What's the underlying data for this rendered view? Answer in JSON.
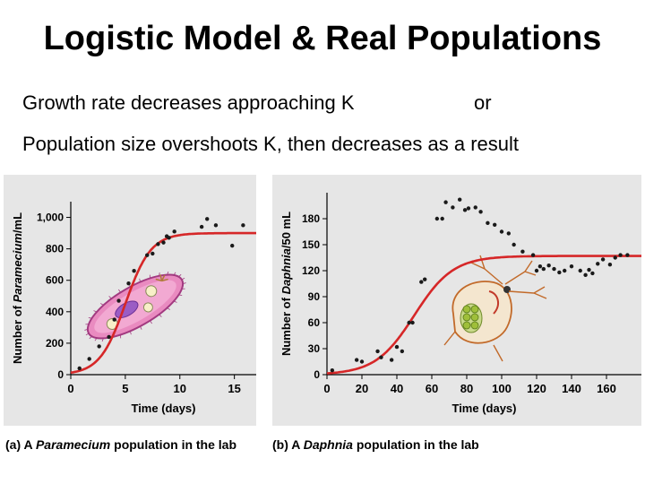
{
  "slide": {
    "title": "Logistic Model & Real Populations",
    "line1": "Growth rate decreases approaching K",
    "or": "or",
    "line2": "Population size overshoots K, then decreases as a result"
  },
  "captions": {
    "a_prefix": "(a) A",
    "a_species": "Paramecium",
    "a_suffix": "population in the lab",
    "b_prefix": "(b) A",
    "b_species": "Daphnia",
    "b_suffix": "population in the lab"
  },
  "colors": {
    "curve": "#d62728",
    "points": "#1a1a1a",
    "panel": "#e6e6e6"
  },
  "icons": {
    "a": "paramecium-illustration",
    "b": "daphnia-illustration"
  },
  "chart_data": [
    {
      "type": "scatter",
      "xlabel": "Time (days)",
      "ylabel_prefix": "Number of",
      "ylabel_species": "Paramecium",
      "ylabel_suffix": "/mL",
      "xlim": [
        0,
        17
      ],
      "ylim": [
        0,
        1100
      ],
      "xticks": [
        0,
        5,
        10,
        15
      ],
      "yticks": [
        0,
        200,
        400,
        600,
        800,
        1000
      ],
      "yticklabels": [
        "0",
        "200",
        "400",
        "600",
        "800",
        "1,000"
      ],
      "points": [
        [
          0.8,
          40
        ],
        [
          1.7,
          100
        ],
        [
          2.6,
          180
        ],
        [
          3.5,
          240
        ],
        [
          4.0,
          350
        ],
        [
          4.4,
          470
        ],
        [
          5.3,
          580
        ],
        [
          5.8,
          660
        ],
        [
          7.0,
          760
        ],
        [
          7.5,
          770
        ],
        [
          8.0,
          830
        ],
        [
          8.5,
          840
        ],
        [
          8.8,
          880
        ],
        [
          9.0,
          870
        ],
        [
          9.5,
          910
        ],
        [
          12.0,
          940
        ],
        [
          12.5,
          990
        ],
        [
          13.3,
          950
        ],
        [
          14.8,
          820
        ],
        [
          15.8,
          950
        ]
      ],
      "curve": {
        "K": 900,
        "r": 0.85,
        "t0": 5.0
      }
    },
    {
      "type": "scatter",
      "xlabel": "Time (days)",
      "ylabel_prefix": "Number of",
      "ylabel_species": "Daphnia",
      "ylabel_suffix": "/50 mL",
      "xlim": [
        0,
        180
      ],
      "ylim": [
        0,
        210
      ],
      "xticks": [
        0,
        20,
        40,
        60,
        80,
        100,
        120,
        140,
        160
      ],
      "yticks": [
        0,
        30,
        60,
        90,
        120,
        150,
        180
      ],
      "yticklabels": [
        "0",
        "30",
        "60",
        "90",
        "120",
        "150",
        "180"
      ],
      "points": [
        [
          3,
          5
        ],
        [
          17,
          17
        ],
        [
          20,
          15
        ],
        [
          29,
          27
        ],
        [
          31,
          20
        ],
        [
          37,
          17
        ],
        [
          40,
          32
        ],
        [
          43,
          27
        ],
        [
          47,
          60
        ],
        [
          49,
          60
        ],
        [
          54,
          107
        ],
        [
          56,
          110
        ],
        [
          63,
          180
        ],
        [
          66,
          180
        ],
        [
          68,
          199
        ],
        [
          72,
          193
        ],
        [
          76,
          202
        ],
        [
          79,
          190
        ],
        [
          81,
          192
        ],
        [
          85,
          193
        ],
        [
          88,
          188
        ],
        [
          92,
          175
        ],
        [
          96,
          173
        ],
        [
          100,
          165
        ],
        [
          104,
          163
        ],
        [
          107,
          150
        ],
        [
          112,
          142
        ],
        [
          118,
          138
        ],
        [
          120,
          120
        ],
        [
          122,
          125
        ],
        [
          124,
          122
        ],
        [
          127,
          126
        ],
        [
          130,
          122
        ],
        [
          133,
          118
        ],
        [
          136,
          120
        ],
        [
          140,
          125
        ],
        [
          145,
          120
        ],
        [
          148,
          115
        ],
        [
          150,
          121
        ],
        [
          152,
          117
        ],
        [
          155,
          128
        ],
        [
          158,
          133
        ],
        [
          162,
          127
        ],
        [
          165,
          135
        ],
        [
          168,
          138
        ],
        [
          172,
          138
        ]
      ],
      "curve": {
        "K": 137,
        "r": 0.09,
        "t0": 50
      }
    }
  ]
}
